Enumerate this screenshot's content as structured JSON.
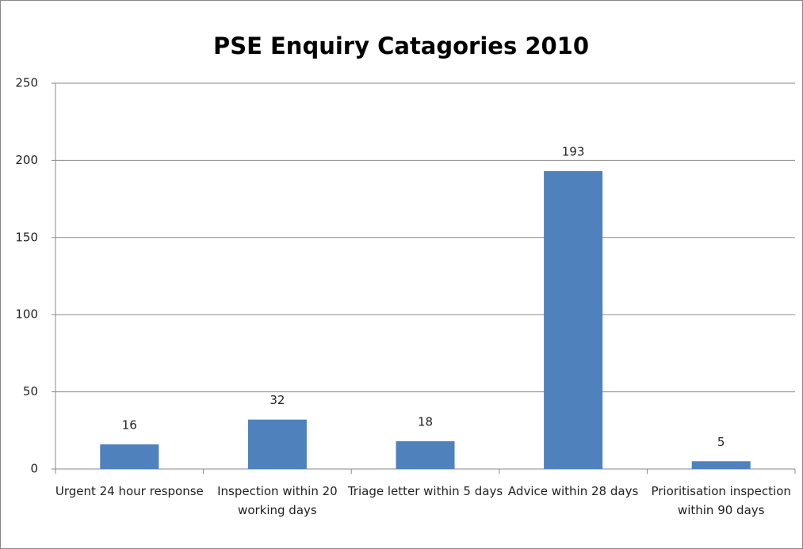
{
  "chart_data": {
    "type": "bar",
    "title": "PSE Enquiry Catagories 2010",
    "categories": [
      "Urgent 24 hour response",
      "Inspection within 20 working days",
      "Triage letter within 5 days",
      "Advice within 28 days",
      "Prioritisation inspection within 90 days"
    ],
    "values": [
      16,
      32,
      18,
      193,
      5
    ],
    "color": "#4f81bd",
    "ylim": [
      0,
      250
    ],
    "yticks": [
      0,
      50,
      100,
      150,
      200,
      250
    ],
    "grid": true
  }
}
